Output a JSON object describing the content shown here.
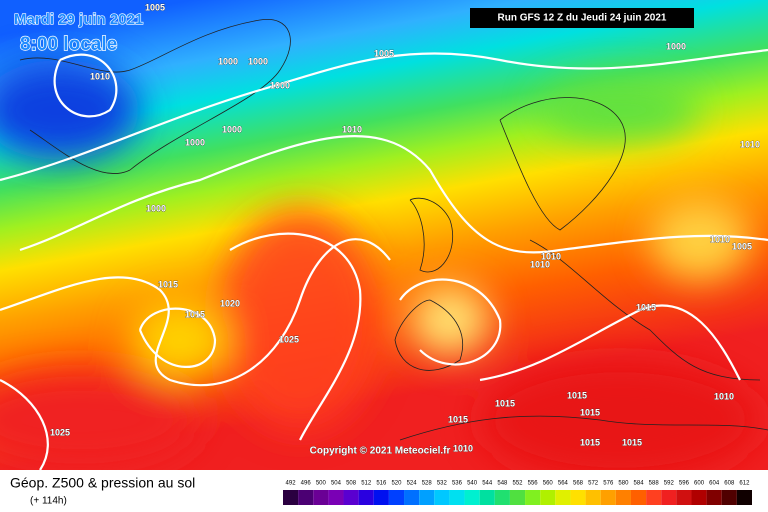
{
  "header": {
    "date": "Mardi 29 juin 2021",
    "time": "8:00 locale",
    "run": "Run GFS 12 Z du Jeudi 24 juin 2021"
  },
  "map": {
    "copyright": "Copyright © 2021 Meteociel.fr",
    "isobar_labels": [
      "1005",
      "1010",
      "1000",
      "1000",
      "1000",
      "1005",
      "1000",
      "1000",
      "1000",
      "1010",
      "1000",
      "1010",
      "1010",
      "1005",
      "1010",
      "1010",
      "1015",
      "1020",
      "1015",
      "1025",
      "1015",
      "1025",
      "1015",
      "1015",
      "1015",
      "1015",
      "1015",
      "1015",
      "1010",
      "1010"
    ]
  },
  "footer": {
    "title": "Géop. Z500 & pression au sol",
    "subtitle": "(+ 114h)"
  },
  "legend": {
    "labels": [
      492,
      496,
      500,
      504,
      508,
      512,
      516,
      520,
      524,
      528,
      532,
      536,
      540,
      544,
      548,
      552,
      556,
      560,
      564,
      568,
      572,
      576,
      580,
      584,
      588,
      592,
      596,
      600,
      604,
      608,
      612
    ],
    "colors": [
      "#2a0040",
      "#4b0073",
      "#6a0095",
      "#7a00b5",
      "#5a00d0",
      "#2a00e0",
      "#0010f0",
      "#0040ff",
      "#0070ff",
      "#00a0ff",
      "#00c8ff",
      "#00e0f0",
      "#00f0d0",
      "#00e0a0",
      "#20e070",
      "#50e040",
      "#80f020",
      "#b0f000",
      "#e0f000",
      "#ffe000",
      "#ffc000",
      "#ffa000",
      "#ff8000",
      "#ff6000",
      "#ff4020",
      "#f02020",
      "#d01010",
      "#b00000",
      "#800000",
      "#500000",
      "#100000"
    ]
  }
}
